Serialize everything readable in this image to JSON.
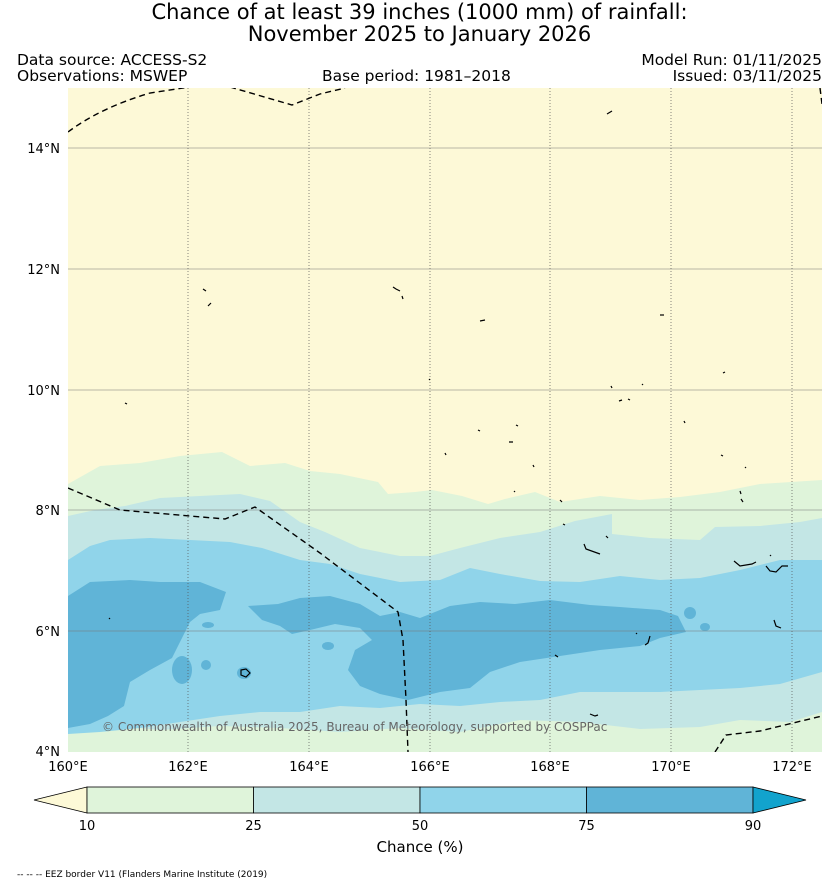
{
  "title": {
    "line1": "Chance of at least 39 inches (1000  mm) of rainfall:",
    "line2": "November 2025 to January 2026"
  },
  "meta": {
    "data_source": "Data source: ACCESS-S2",
    "observations": "Observations: MSWEP",
    "base_period": "Base period: 1981–2018",
    "model_run": "Model Run: 01/11/2025",
    "issued": "Issued: 03/11/2025"
  },
  "axes": {
    "lat_labels": [
      "14°N",
      "12°N",
      "10°N",
      "8°N",
      "6°N",
      "4°N"
    ],
    "lon_labels": [
      "160°E",
      "162°E",
      "164°E",
      "166°E",
      "168°E",
      "170°E",
      "172°E"
    ]
  },
  "copyright": "© Commonwealth of Australia 2025, Bureau of Meteorology, supported by COSPPac",
  "colorbar": {
    "ticks": [
      "10",
      "25",
      "50",
      "75",
      "90"
    ],
    "label": "Chance (%)",
    "colors": [
      "#fdf9d7",
      "#dff4da",
      "#c3e6e5",
      "#90d4ea",
      "#60b4d7",
      "#12a3cd"
    ]
  },
  "footer": "-- -- -- EEZ border V11 (Flanders Marine Institute (2019)"
}
